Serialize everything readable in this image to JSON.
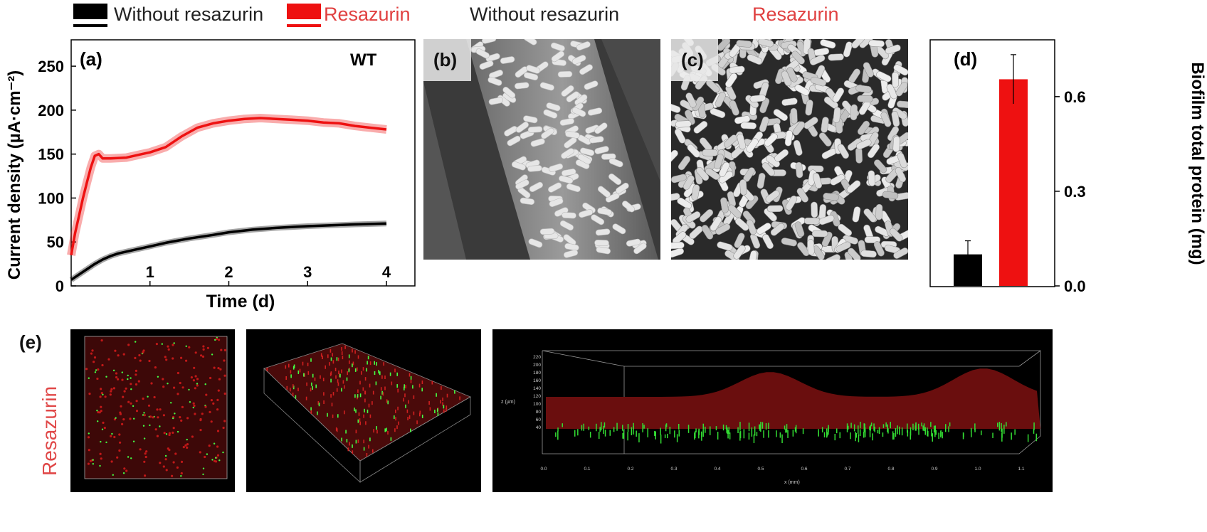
{
  "legend": {
    "without": "Without resazurin",
    "with": "Resazurin",
    "without_color": "#000000",
    "with_color": "#ee1111"
  },
  "headers": {
    "sem_left": "Without resazurin",
    "sem_right": "Resazurin"
  },
  "panel_labels": {
    "a": "(a)",
    "b": "(b)",
    "c": "(c)",
    "d": "(d)",
    "e": "(e)"
  },
  "side_label": "Resazurin",
  "chart_data": [
    {
      "type": "line",
      "panel": "(a)",
      "annotation": "WT",
      "xlabel": "Time (d)",
      "ylabel": "Current density (µA·cm⁻²)",
      "xlim": [
        0,
        4
      ],
      "ylim": [
        0,
        280
      ],
      "xticks": [
        1,
        2,
        3,
        4
      ],
      "yticks": [
        0,
        50,
        100,
        150,
        200,
        250
      ],
      "series": [
        {
          "name": "Resazurin",
          "color": "#ee1111",
          "x": [
            0,
            0.05,
            0.1,
            0.15,
            0.2,
            0.25,
            0.3,
            0.35,
            0.4,
            0.5,
            0.7,
            0.9,
            1.0,
            1.2,
            1.4,
            1.6,
            1.8,
            2.0,
            2.2,
            2.4,
            2.6,
            2.8,
            3.0,
            3.2,
            3.4,
            3.6,
            3.8,
            4.0
          ],
          "y": [
            35,
            60,
            80,
            100,
            118,
            135,
            148,
            150,
            145,
            145,
            146,
            150,
            152,
            158,
            170,
            180,
            185,
            188,
            190,
            191,
            190,
            189,
            188,
            186,
            185,
            182,
            180,
            178
          ]
        },
        {
          "name": "Without resazurin",
          "color": "#000000",
          "x": [
            0,
            0.1,
            0.2,
            0.3,
            0.4,
            0.5,
            0.6,
            0.8,
            1.0,
            1.2,
            1.5,
            1.8,
            2.0,
            2.3,
            2.6,
            3.0,
            3.3,
            3.6,
            4.0
          ],
          "y": [
            7,
            13,
            19,
            25,
            30,
            34,
            37,
            41,
            45,
            49,
            54,
            58,
            61,
            64,
            66,
            68,
            69,
            70,
            71
          ]
        }
      ]
    },
    {
      "type": "bar",
      "panel": "(d)",
      "ylabel": "Biofilm total protein (mg)",
      "ylim": [
        0,
        0.78
      ],
      "yticks": [
        "0.0",
        "0.3",
        "0.6"
      ],
      "categories": [
        "Without resazurin",
        "Resazurin"
      ],
      "values": [
        0.1,
        0.655
      ],
      "errors": [
        0.043,
        0.078
      ],
      "colors": [
        "#000000",
        "#ee1111"
      ]
    }
  ],
  "confocal": {
    "z_label": "z (µm)",
    "x_label": "x (mm)",
    "z_ticks": [
      "40",
      "60",
      "80",
      "100",
      "120",
      "140",
      "160",
      "180",
      "200",
      "220"
    ],
    "x_ticks": [
      "0.0",
      "0.1",
      "0.2",
      "0.3",
      "0.4",
      "0.5",
      "0.6",
      "0.7",
      "0.8",
      "0.9",
      "1.0",
      "1.1"
    ]
  }
}
